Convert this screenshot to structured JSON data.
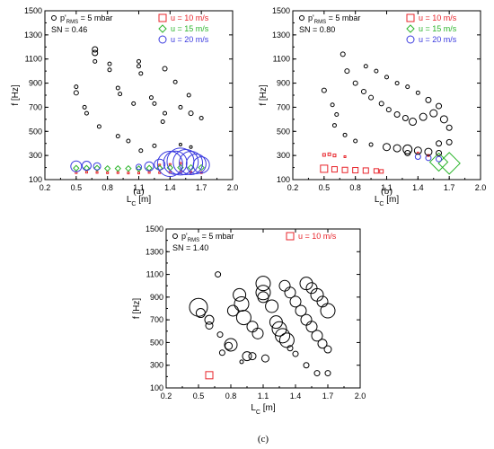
{
  "chart_data": [
    {
      "type": "scatter",
      "panel_label": "(a)",
      "xlabel_main": "L",
      "xlabel_sub": "C",
      "xlabel_unit": " [m]",
      "ylabel": "f [Hz]",
      "xlim": [
        0.2,
        2.0
      ],
      "ylim": [
        100,
        1500
      ],
      "xticks": [
        "0.2",
        "0.5",
        "0.8",
        "1.1",
        "1.4",
        "1.7",
        "2.0"
      ],
      "yticks": [
        "100",
        "300",
        "500",
        "700",
        "900",
        "1100",
        "1300",
        "1500"
      ],
      "ref_marker": {
        "main": "p'",
        "sub": "RMS",
        "tail": " = 5 mbar"
      },
      "sn_label": "SN = 0.46",
      "series": [
        {
          "name": "u = 10 m/s",
          "marker": "square",
          "color": "#e8242b",
          "points": [
            [
              0.5,
              158,
              1
            ],
            [
              0.6,
              162,
              1
            ],
            [
              0.7,
              160,
              1
            ],
            [
              0.8,
              157,
              1
            ],
            [
              0.9,
              158,
              1
            ],
            [
              1.0,
              155,
              1
            ],
            [
              1.1,
              155,
              1
            ],
            [
              1.2,
              160,
              1
            ],
            [
              1.3,
              158,
              1
            ],
            [
              1.4,
              160,
              1
            ],
            [
              1.5,
              162,
              1
            ],
            [
              1.6,
              160,
              1
            ],
            [
              1.7,
              158,
              1
            ],
            [
              1.3,
              220,
              1
            ],
            [
              1.4,
              225,
              1
            ],
            [
              1.5,
              235,
              1
            ]
          ]
        },
        {
          "name": "u = 15 m/s",
          "marker": "diamond",
          "color": "#2db52d",
          "points": [
            [
              0.5,
              195,
              3
            ],
            [
              0.6,
              195,
              3
            ],
            [
              0.7,
              195,
              3
            ],
            [
              0.8,
              192,
              3
            ],
            [
              0.9,
              192,
              3
            ],
            [
              1.0,
              192,
              3
            ],
            [
              1.1,
              190,
              3
            ],
            [
              1.2,
              195,
              3
            ],
            [
              1.3,
              195,
              3
            ],
            [
              1.4,
              198,
              3
            ],
            [
              1.5,
              200,
              3
            ],
            [
              1.6,
              200,
              3
            ],
            [
              1.7,
              200,
              3
            ]
          ]
        },
        {
          "name": "u = 20 m/s",
          "marker": "circle",
          "color": "#3a3adf",
          "points": [
            [
              0.5,
              210,
              6
            ],
            [
              0.6,
              215,
              5
            ],
            [
              0.7,
              210,
              4
            ],
            [
              1.1,
              205,
              3
            ],
            [
              1.2,
              210,
              5
            ],
            [
              1.3,
              225,
              6
            ],
            [
              1.4,
              230,
              14
            ],
            [
              1.45,
              240,
              13
            ],
            [
              1.5,
              250,
              15
            ],
            [
              1.55,
              245,
              14
            ],
            [
              1.6,
              238,
              13
            ],
            [
              1.65,
              230,
              11
            ],
            [
              1.7,
              222,
              9
            ]
          ]
        },
        {
          "name": "p_ref",
          "marker": "circle",
          "color": "#000000",
          "points": [
            [
              0.5,
              870,
              2
            ],
            [
              0.5,
              820,
              2.5
            ],
            [
              0.58,
              700,
              2
            ],
            [
              0.6,
              650,
              2
            ],
            [
              0.68,
              1180,
              3
            ],
            [
              0.68,
              1150,
              3
            ],
            [
              0.68,
              1080,
              2
            ],
            [
              0.82,
              1060,
              2
            ],
            [
              0.82,
              1010,
              2
            ],
            [
              0.9,
              860,
              2
            ],
            [
              0.92,
              810,
              2
            ],
            [
              1.1,
              1080,
              2
            ],
            [
              1.1,
              1040,
              2
            ],
            [
              1.12,
              980,
              2
            ],
            [
              1.05,
              730,
              2
            ],
            [
              1.22,
              780,
              2
            ],
            [
              1.25,
              730,
              2
            ],
            [
              1.33,
              580,
              2
            ],
            [
              1.35,
              1020,
              2.5
            ],
            [
              1.45,
              910,
              2
            ],
            [
              1.5,
              700,
              2
            ],
            [
              1.58,
              800,
              2
            ],
            [
              1.6,
              650,
              2.5
            ],
            [
              1.7,
              610,
              2
            ],
            [
              1.35,
              650,
              2
            ],
            [
              0.72,
              540,
              2
            ],
            [
              0.9,
              460,
              2
            ],
            [
              1.0,
              420,
              2
            ],
            [
              1.25,
              380,
              2
            ],
            [
              1.12,
              340,
              2
            ],
            [
              1.5,
              390,
              1.5
            ],
            [
              1.6,
              370,
              1.5
            ]
          ]
        }
      ]
    },
    {
      "type": "scatter",
      "panel_label": "(b)",
      "xlabel_main": "L",
      "xlabel_sub": "C",
      "xlabel_unit": " [m]",
      "ylabel": "f [Hz]",
      "xlim": [
        0.2,
        2.0
      ],
      "ylim": [
        100,
        1500
      ],
      "xticks": [
        "0.2",
        "0.5",
        "0.8",
        "1.1",
        "1.4",
        "1.7",
        "2.0"
      ],
      "yticks": [
        "100",
        "300",
        "500",
        "700",
        "900",
        "1100",
        "1300",
        "1500"
      ],
      "ref_marker": {
        "main": "p'",
        "sub": "RMS",
        "tail": " = 5 mbar"
      },
      "sn_label": "SN = 0.80",
      "series": [
        {
          "name": "u = 10 m/s",
          "marker": "square",
          "color": "#e8242b",
          "points": [
            [
              0.5,
              190,
              4
            ],
            [
              0.6,
              185,
              3
            ],
            [
              0.7,
              180,
              3
            ],
            [
              0.8,
              178,
              3
            ],
            [
              0.9,
              175,
              3
            ],
            [
              1.0,
              172,
              2.5
            ],
            [
              1.05,
              168,
              2
            ],
            [
              0.5,
              305,
              1.5
            ],
            [
              0.55,
              310,
              1.5
            ],
            [
              0.6,
              300,
              1.5
            ],
            [
              0.7,
              290,
              1
            ],
            [
              1.4,
              320,
              1
            ],
            [
              1.5,
              300,
              1
            ]
          ]
        },
        {
          "name": "u = 15 m/s",
          "marker": "diamond",
          "color": "#2db52d",
          "points": [
            [
              1.6,
              245,
              10
            ],
            [
              1.7,
              235,
              12
            ]
          ]
        },
        {
          "name": "u = 20 m/s",
          "marker": "circle",
          "color": "#3a3adf",
          "points": [
            [
              1.4,
              290,
              3
            ],
            [
              1.5,
              280,
              3
            ],
            [
              1.6,
              270,
              3
            ]
          ]
        },
        {
          "name": "p_ref",
          "marker": "circle",
          "color": "#000000",
          "points": [
            [
              0.5,
              840,
              2.5
            ],
            [
              0.58,
              720,
              2
            ],
            [
              0.68,
              1140,
              2.5
            ],
            [
              0.72,
              1000,
              2.5
            ],
            [
              0.8,
              900,
              2.5
            ],
            [
              0.88,
              830,
              2.5
            ],
            [
              0.95,
              780,
              2.5
            ],
            [
              1.05,
              730,
              2.5
            ],
            [
              1.12,
              680,
              2.5
            ],
            [
              1.2,
              640,
              3
            ],
            [
              1.28,
              610,
              3
            ],
            [
              1.35,
              580,
              4
            ],
            [
              1.45,
              620,
              4
            ],
            [
              1.55,
              650,
              4
            ],
            [
              1.65,
              600,
              4
            ],
            [
              1.7,
              530,
              3
            ],
            [
              0.9,
              1040,
              2
            ],
            [
              1.0,
              1000,
              2
            ],
            [
              1.1,
              950,
              2
            ],
            [
              1.2,
              900,
              2
            ],
            [
              1.3,
              870,
              2
            ],
            [
              1.4,
              820,
              2
            ],
            [
              1.5,
              760,
              3
            ],
            [
              1.6,
              710,
              3
            ],
            [
              0.6,
              550,
              2
            ],
            [
              0.7,
              470,
              2
            ],
            [
              0.8,
              420,
              2
            ],
            [
              0.95,
              390,
              2
            ],
            [
              1.1,
              370,
              4
            ],
            [
              1.2,
              360,
              4
            ],
            [
              1.3,
              350,
              5
            ],
            [
              1.4,
              340,
              4
            ],
            [
              1.5,
              330,
              4
            ],
            [
              1.6,
              320,
              3
            ],
            [
              1.7,
              410,
              3
            ],
            [
              0.62,
              640,
              2
            ],
            [
              1.3,
              320,
              3
            ],
            [
              1.6,
              400,
              3
            ]
          ]
        }
      ]
    },
    {
      "type": "scatter",
      "panel_label": "(c)",
      "xlabel_main": "L",
      "xlabel_sub": "C",
      "xlabel_unit": " [m]",
      "ylabel": "f [Hz]",
      "xlim": [
        0.2,
        2.0
      ],
      "ylim": [
        100,
        1500
      ],
      "xticks": [
        "0.2",
        "0.5",
        "0.8",
        "1.1",
        "1.4",
        "1.7",
        "2.0"
      ],
      "yticks": [
        "100",
        "300",
        "500",
        "700",
        "900",
        "1100",
        "1300",
        "1500"
      ],
      "ref_marker": {
        "main": "p'",
        "sub": "RMS",
        "tail": " = 5 mbar"
      },
      "sn_label": "SN = 1.40",
      "series": [
        {
          "name": "u = 10 m/s",
          "marker": "square",
          "color": "#e8242b",
          "points": [
            [
              0.6,
              212,
              4
            ]
          ]
        },
        {
          "name": "p_ref",
          "marker": "circle",
          "color": "#000000",
          "points": [
            [
              0.5,
              810,
              10
            ],
            [
              0.52,
              760,
              5
            ],
            [
              0.6,
              700,
              5
            ],
            [
              0.6,
              650,
              4
            ],
            [
              0.68,
              1100,
              3
            ],
            [
              0.7,
              570,
              3
            ],
            [
              0.72,
              410,
              3
            ],
            [
              0.8,
              480,
              7
            ],
            [
              0.82,
              780,
              6
            ],
            [
              0.88,
              920,
              7
            ],
            [
              0.9,
              840,
              8
            ],
            [
              0.92,
              720,
              8
            ],
            [
              0.95,
              380,
              5
            ],
            [
              1.0,
              640,
              6
            ],
            [
              1.05,
              580,
              6
            ],
            [
              1.0,
              380,
              4
            ],
            [
              1.1,
              1020,
              8
            ],
            [
              1.1,
              940,
              8
            ],
            [
              1.1,
              900,
              6
            ],
            [
              1.12,
              360,
              4
            ],
            [
              1.18,
              820,
              7
            ],
            [
              1.22,
              680,
              7
            ],
            [
              1.25,
              620,
              8
            ],
            [
              1.28,
              560,
              8
            ],
            [
              1.32,
              520,
              8
            ],
            [
              1.3,
              1000,
              6
            ],
            [
              1.35,
              940,
              6
            ],
            [
              1.4,
              860,
              6
            ],
            [
              1.45,
              780,
              6
            ],
            [
              1.5,
              700,
              6
            ],
            [
              1.55,
              640,
              6
            ],
            [
              1.6,
              560,
              6
            ],
            [
              1.65,
              490,
              5
            ],
            [
              1.7,
              440,
              4
            ],
            [
              1.5,
              1020,
              7
            ],
            [
              1.55,
              980,
              6
            ],
            [
              1.6,
              920,
              7
            ],
            [
              1.65,
              860,
              6
            ],
            [
              1.7,
              780,
              8
            ],
            [
              1.4,
              400,
              3
            ],
            [
              1.5,
              300,
              3
            ],
            [
              1.6,
              230,
              3
            ],
            [
              1.7,
              230,
              3
            ],
            [
              0.9,
              330,
              2
            ],
            [
              0.78,
              470,
              4
            ],
            [
              1.35,
              450,
              3
            ]
          ]
        }
      ]
    }
  ]
}
